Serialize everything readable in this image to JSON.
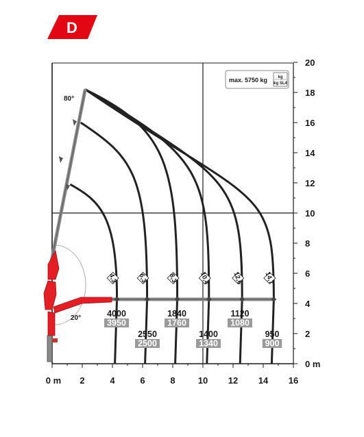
{
  "badge": {
    "letter": "D",
    "color": "#e30613"
  },
  "info_box": {
    "max_label": "max. 5750 kg",
    "unit_top": "kg",
    "unit_bottom": "kg SL4"
  },
  "angles": {
    "high": "80°",
    "low": "20°"
  },
  "colors": {
    "curve": "#222222",
    "boom": "#8a8a8a",
    "boom_base": "#e31e24",
    "grid": "#1a1a1a"
  },
  "chart_data": {
    "type": "load-chart",
    "x_axis": {
      "min": 0,
      "max": 16,
      "ticks": [
        "0 m",
        "2",
        "4",
        "6",
        "8",
        "10",
        "12",
        "14",
        "16"
      ]
    },
    "y_axis": {
      "min": 0,
      "max": 20,
      "ticks": [
        "0 m",
        "2",
        "4",
        "6",
        "8",
        "10",
        "12",
        "14",
        "16",
        "18",
        "20"
      ]
    },
    "reaches": [
      "4,3",
      "6,3",
      "8,3",
      "10,4",
      "12,6",
      "14,7"
    ],
    "capacities": [
      {
        "reach": "4,3",
        "load_kg": "4000",
        "load_sl4": "3950"
      },
      {
        "reach": "6,3",
        "load_kg": "2550",
        "load_sl4": "2500"
      },
      {
        "reach": "8,3",
        "load_kg": "1840",
        "load_sl4": "1760"
      },
      {
        "reach": "10,4",
        "load_kg": "1400",
        "load_sl4": "1340"
      },
      {
        "reach": "12,6",
        "load_kg": "1120",
        "load_sl4": "1080"
      },
      {
        "reach": "14,7",
        "load_kg": "950",
        "load_sl4": "900"
      }
    ]
  }
}
